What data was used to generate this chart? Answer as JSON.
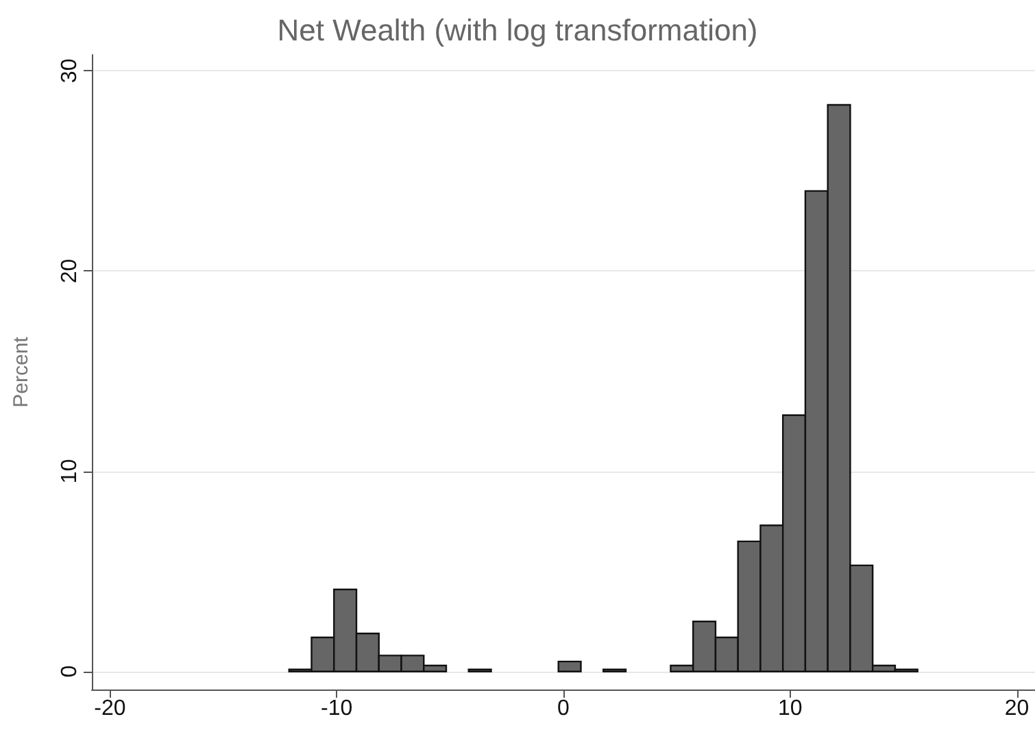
{
  "chart_data": {
    "type": "histogram",
    "title": "Net Wealth (with log transformation)",
    "ylabel": "Percent",
    "bins": [
      -12.1,
      -11.11,
      -10.12,
      -9.13,
      -8.14,
      -7.15,
      -6.16,
      -5.17,
      -4.18,
      -3.19,
      -2.2,
      -1.21,
      -0.22,
      0.77,
      1.76,
      2.75,
      3.74,
      4.73,
      5.72,
      6.71,
      7.7,
      8.69,
      9.68,
      10.67,
      11.66,
      12.65,
      13.64,
      14.63,
      15.62
    ],
    "values": [
      0.1,
      1.7,
      4.1,
      1.9,
      0.8,
      0.8,
      0.3,
      0,
      0.1,
      0,
      0,
      0,
      0.5,
      0,
      0.1,
      0,
      0,
      0.3,
      2.5,
      1.7,
      6.5,
      7.3,
      12.8,
      24.0,
      28.3,
      5.3,
      0.3,
      0.1
    ],
    "color": "#666666",
    "xlim": [
      -20.8,
      20.8
    ],
    "xticks": [
      -20,
      -10,
      0,
      10,
      20
    ],
    "ylim": [
      -0.9,
      30.8
    ],
    "yticks": [
      0,
      10,
      20,
      30
    ],
    "grid": "y"
  }
}
